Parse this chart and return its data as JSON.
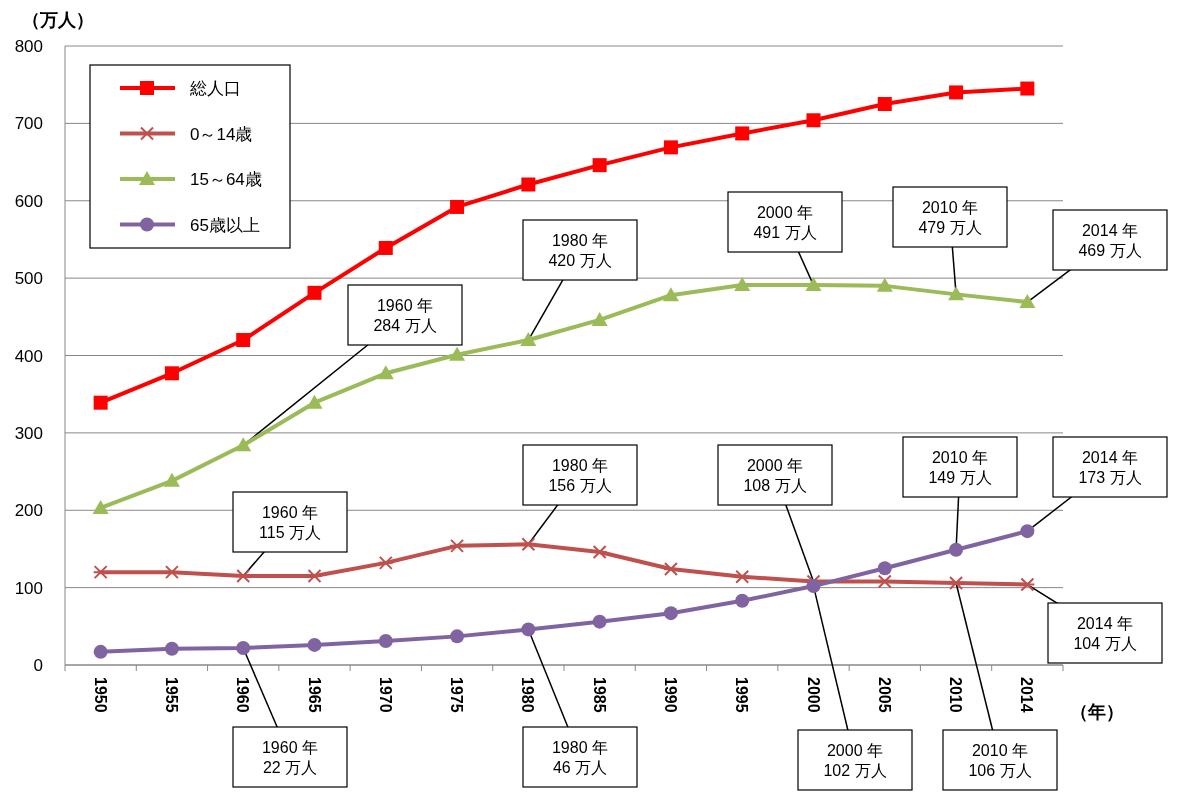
{
  "chart_data": {
    "type": "line",
    "ylabel": "（万人）",
    "xlabel": "（年）",
    "categories": [
      "1950",
      "1955",
      "1960",
      "1965",
      "1970",
      "1975",
      "1980",
      "1985",
      "1990",
      "1995",
      "2000",
      "2005",
      "2010",
      "2014"
    ],
    "ylim": [
      0,
      800
    ],
    "yticks": [
      0,
      100,
      200,
      300,
      400,
      500,
      600,
      700,
      800
    ],
    "grid": "y",
    "legend": "top left",
    "series": [
      {
        "name": "総人口",
        "color": "#ff0000",
        "marker": "square",
        "values": [
          339,
          377,
          420,
          481,
          539,
          592,
          621,
          646,
          669,
          687,
          704,
          725,
          740,
          745
        ]
      },
      {
        "name": "0～14歳",
        "color": "#c0504d",
        "marker": "cross",
        "values": [
          120,
          120,
          115,
          115,
          132,
          154,
          156,
          146,
          124,
          114,
          108,
          108,
          106,
          104
        ]
      },
      {
        "name": "15～64歳",
        "color": "#9bbb59",
        "marker": "triangle",
        "values": [
          203,
          238,
          284,
          339,
          377,
          401,
          420,
          446,
          478,
          491,
          491,
          490,
          479,
          469
        ]
      },
      {
        "name": "65歳以上",
        "color": "#8064a2",
        "marker": "circle",
        "values": [
          17,
          21,
          22,
          26,
          31,
          37,
          46,
          56,
          67,
          83,
          102,
          125,
          149,
          173
        ]
      }
    ],
    "annotations": [
      {
        "text": "1960 年\n284 万人",
        "x": "1960",
        "y": 284
      },
      {
        "text": "1980 年\n420 万人",
        "x": "1980",
        "y": 420
      },
      {
        "text": "2000 年\n491 万人",
        "x": "2000",
        "y": 491
      },
      {
        "text": "2010 年\n479 万人",
        "x": "2010",
        "y": 479
      },
      {
        "text": "2014 年\n469 万人",
        "x": "2014",
        "y": 469
      },
      {
        "text": "1960 年\n115 万人",
        "x": "1960",
        "y": 115
      },
      {
        "text": "1980 年\n156 万人",
        "x": "1980",
        "y": 156
      },
      {
        "text": "2000 年\n108 万人",
        "x": "2000",
        "y": 108
      },
      {
        "text": "2010 年\n149 万人",
        "x": "2010",
        "y": 149
      },
      {
        "text": "2014 年\n173 万人",
        "x": "2014",
        "y": 173
      },
      {
        "text": "2014 年\n104 万人",
        "x": "2014",
        "y": 104
      },
      {
        "text": "1960 年\n22 万人",
        "x": "1960",
        "y": 22
      },
      {
        "text": "1980 年\n46 万人",
        "x": "1980",
        "y": 46
      },
      {
        "text": "2000 年\n102 万人",
        "x": "2000",
        "y": 102
      },
      {
        "text": "2010 年\n106 万人",
        "x": "2010",
        "y": 106
      }
    ]
  }
}
